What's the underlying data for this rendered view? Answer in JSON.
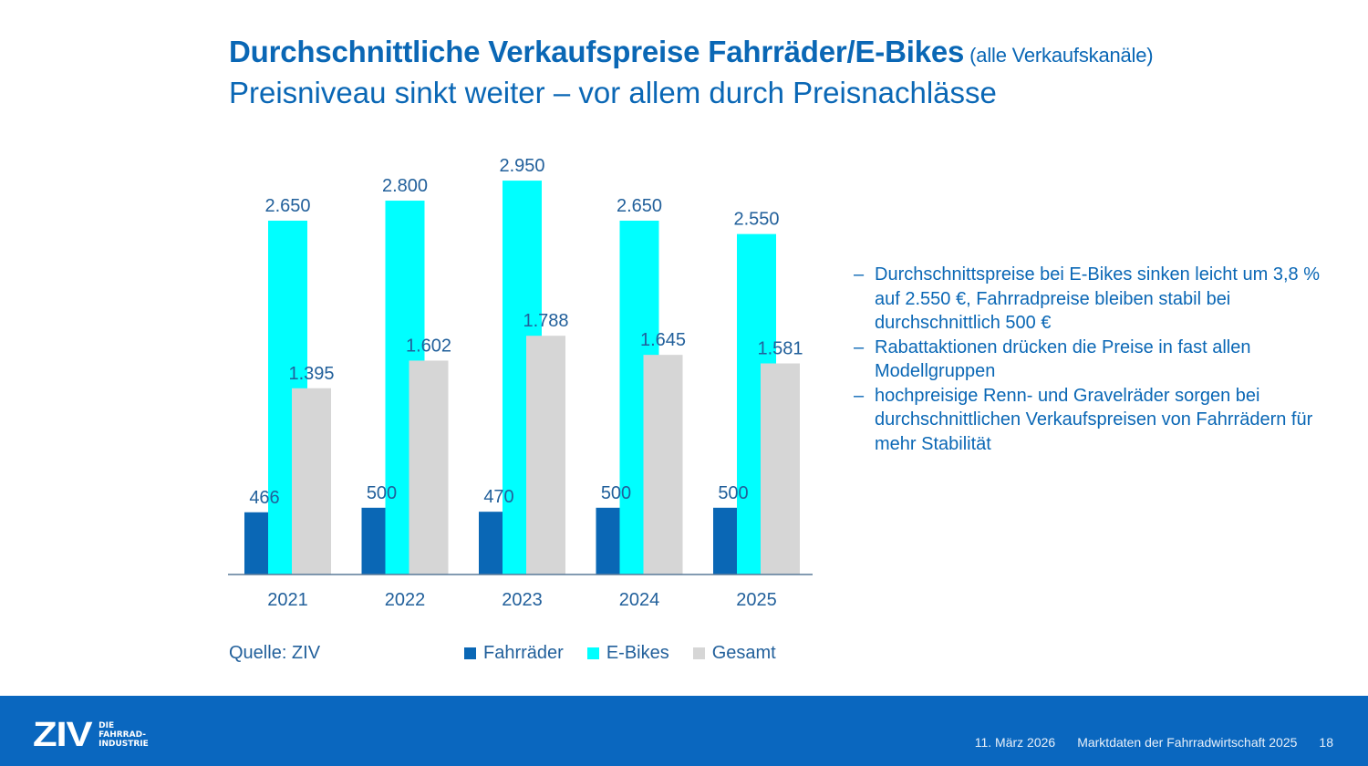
{
  "header": {
    "title": "Durchschnittliche Verkaufspreise Fahrräder/E-Bikes",
    "title_suffix": "(alle Verkaufskanäle)",
    "subtitle": "Preisniveau sinkt weiter – vor allem durch Preisnachlässe"
  },
  "chart_data": {
    "type": "bar",
    "title": "Durchschnittliche Verkaufspreise Fahrräder/E-Bikes (alle Verkaufskanäle)",
    "xlabel": "",
    "ylabel": "",
    "categories": [
      "2021",
      "2022",
      "2023",
      "2024",
      "2025"
    ],
    "series": [
      {
        "name": "Fahrräder",
        "color": "#0a67b5",
        "values": [
          466,
          500,
          470,
          500,
          500
        ],
        "labels": [
          "466",
          "500",
          "470",
          "500",
          "500"
        ]
      },
      {
        "name": "E-Bikes",
        "color": "#00ffff",
        "values": [
          2650,
          2800,
          2950,
          2650,
          2550
        ],
        "labels": [
          "2.650",
          "2.800",
          "2.950",
          "2.650",
          "2.550"
        ]
      },
      {
        "name": "Gesamt",
        "color": "#d6d6d6",
        "values": [
          1395,
          1602,
          1788,
          1645,
          1581
        ],
        "labels": [
          "1.395",
          "1.602",
          "1.788",
          "1.645",
          "1.581"
        ]
      }
    ],
    "ylim": [
      0,
      3000
    ],
    "grid": false,
    "legend": "bottom",
    "data_labels": true,
    "source": "Quelle: ZIV"
  },
  "bullets": [
    "Durchschnittspreise bei E-Bikes sinken leicht um 3,8 % auf 2.550 €, Fahrradpreise bleiben stabil bei durchschnittlich 500 €",
    "Rabattaktionen drücken die Preise in fast allen Modellgruppen",
    "hochpreisige Renn- und Gravelräder sorgen bei durchschnittlichen Verkaufspreisen von Fahrrädern für mehr Stabilität"
  ],
  "bullet_marker": "–",
  "footer": {
    "logo_mark": "ZIV",
    "logo_lines": [
      "DIE",
      "FAHRRAD-",
      "INDUSTRIE"
    ],
    "date": "11. März 2026",
    "doc_title": "Marktdaten der Fahrradwirtschaft 2025",
    "page_number": "18",
    "background": "#0a67bf"
  }
}
